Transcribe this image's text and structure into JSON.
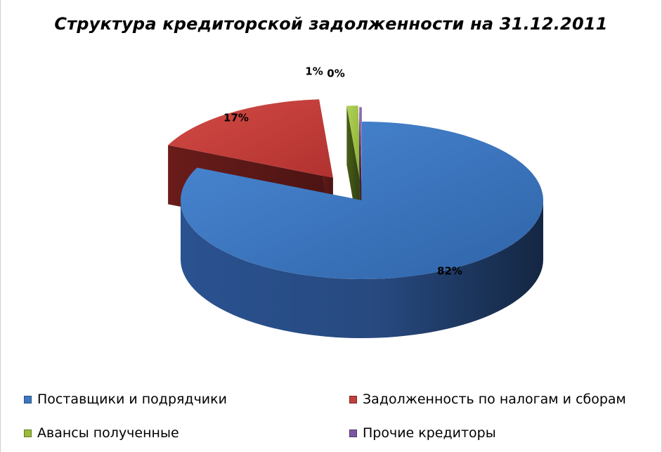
{
  "chart_data": {
    "type": "pie",
    "title": "Структура кредиторской задолженности на 31.12.2011",
    "categories": [
      "Поставщики и подрядчики",
      "Задолженность по налогам и сборам",
      "Авансы полученные",
      "Прочие кредиторы"
    ],
    "values": [
      82,
      17,
      1,
      0
    ],
    "data_labels": [
      "82%",
      "17%",
      "1%",
      "0%"
    ],
    "colors": [
      "#3d78c2",
      "#c0403c",
      "#9bbb3b",
      "#7c55a5"
    ],
    "legend_position": "bottom",
    "style": "3d exploded"
  }
}
